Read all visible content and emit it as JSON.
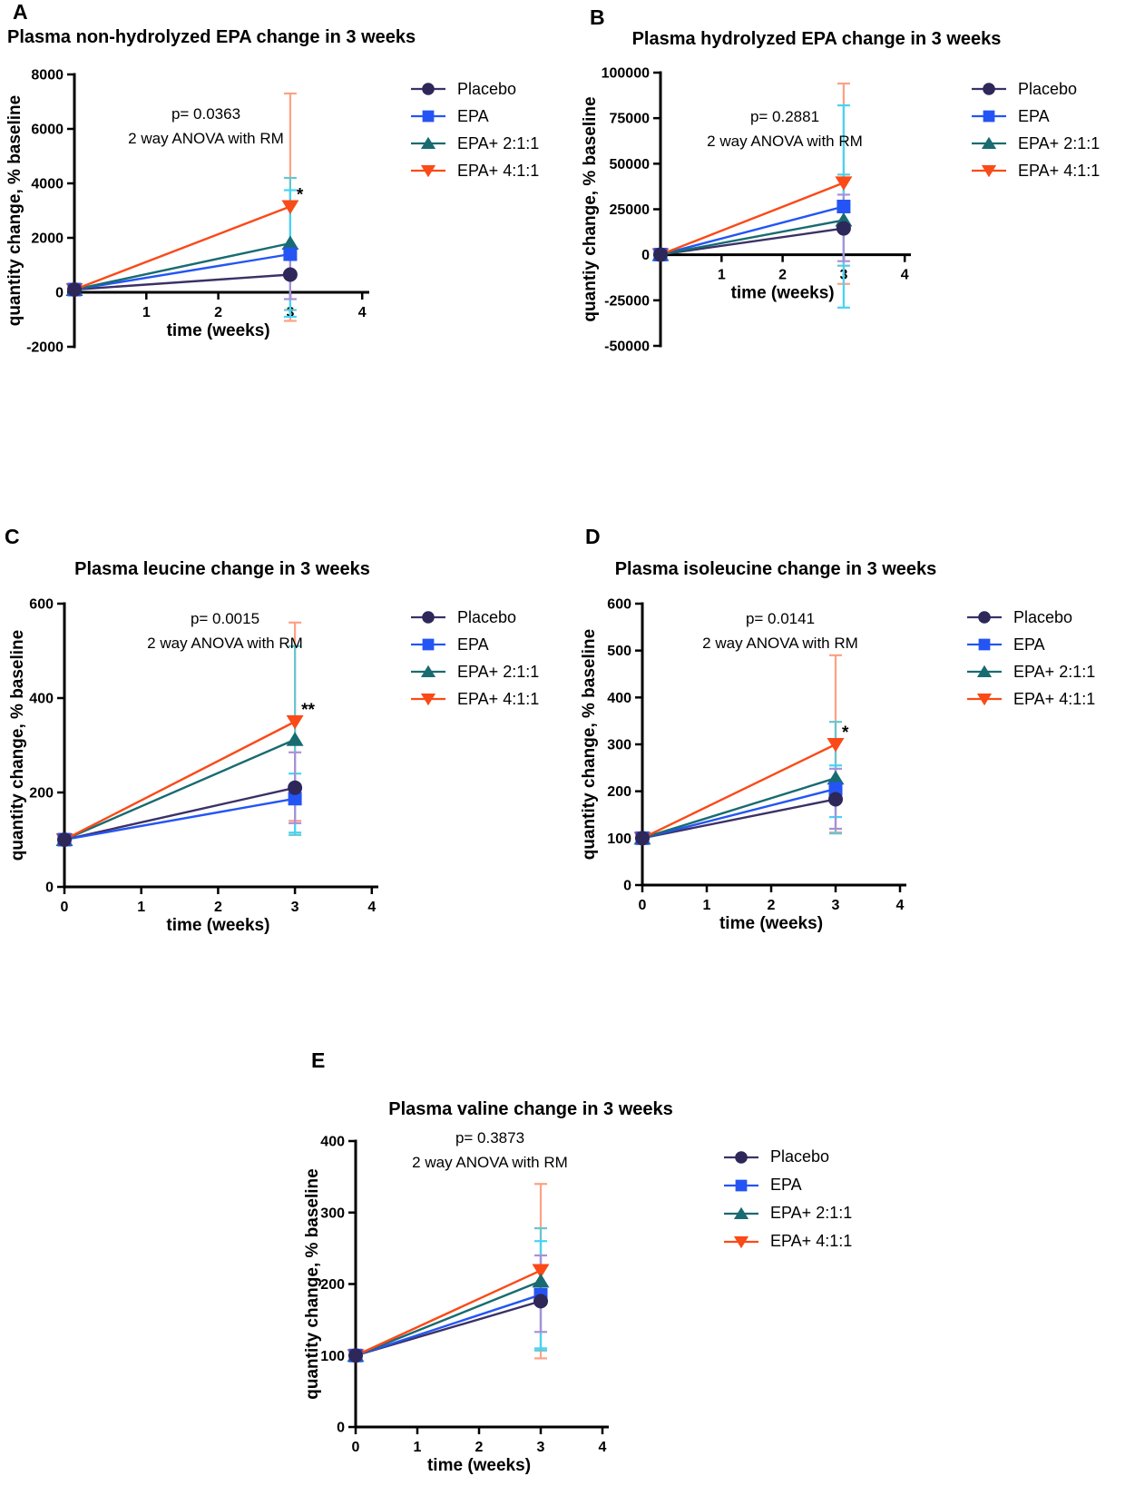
{
  "figure": {
    "background_color": "#ffffff",
    "text_color": "#000000",
    "legend_labels": [
      "Placebo",
      "EPA",
      "EPA+ 2:1:1",
      "EPA+ 4:1:1"
    ],
    "series_styles": [
      {
        "key": "placebo",
        "label": "Placebo",
        "marker": "circle",
        "color": "#2d275a",
        "line_color": "#3c3166",
        "error_color": "#a990d8"
      },
      {
        "key": "epa",
        "label": "EPA",
        "marker": "square",
        "color": "#2455f4",
        "line_color": "#2455f4",
        "error_color": "#44d4f6"
      },
      {
        "key": "epa211",
        "label": "EPA+ 2:1:1",
        "marker": "triangle-up",
        "color": "#186b71",
        "line_color": "#186b71",
        "error_color": "#66c6cf"
      },
      {
        "key": "epa411",
        "label": "EPA+ 4:1:1",
        "marker": "triangle-down",
        "color": "#fa4a17",
        "line_color": "#fa4a17",
        "error_color": "#fba285"
      }
    ]
  },
  "chart_data": [
    {
      "type": "line",
      "panel": "A",
      "panel_letter": "A",
      "title": "Plasma non-hydrolyzed EPA change in 3 weeks",
      "annotation": {
        "p_value_line": "p= 0.0363",
        "method_line": "2 way ANOVA with RM"
      },
      "xlabel": "time (weeks)",
      "ylabel": "quantity change, % baseline",
      "x_weeks": [
        0,
        3
      ],
      "xticks": [
        1,
        2,
        3,
        4
      ],
      "ylim": [
        -2000,
        8000
      ],
      "yticks": [
        -2000,
        0,
        2000,
        4000,
        6000,
        8000
      ],
      "legend_position": "right",
      "grid": false,
      "series": [
        {
          "name": "Placebo",
          "values": [
            100,
            650
          ],
          "error_week3": [
            -250,
            1550
          ],
          "significance": ""
        },
        {
          "name": "EPA",
          "values": [
            100,
            1400
          ],
          "error_week3": [
            -900,
            3750
          ],
          "significance": ""
        },
        {
          "name": "EPA+ 2:1:1",
          "values": [
            100,
            1800
          ],
          "error_week3": [
            -650,
            4200
          ],
          "significance": ""
        },
        {
          "name": "EPA+ 4:1:1",
          "values": [
            100,
            3150
          ],
          "error_week3": [
            -1050,
            7300
          ],
          "significance": "*"
        }
      ]
    },
    {
      "type": "line",
      "panel": "B",
      "panel_letter": "B",
      "title": "Plasma hydrolyzed EPA change in 3 weeks",
      "annotation": {
        "p_value_line": "p= 0.2881",
        "method_line": "2 way ANOVA with RM"
      },
      "xlabel": "time (weeks)",
      "ylabel": "quantiy change, % baseline",
      "x_weeks": [
        0,
        3
      ],
      "xticks": [
        1,
        2,
        3,
        4
      ],
      "ylim": [
        -50000,
        100000
      ],
      "yticks": [
        -50000,
        -25000,
        0,
        25000,
        50000,
        75000,
        100000
      ],
      "legend_position": "right",
      "grid": false,
      "series": [
        {
          "name": "Placebo",
          "values": [
            100,
            14500
          ],
          "error_week3": [
            -3500,
            33000
          ],
          "significance": ""
        },
        {
          "name": "EPA",
          "values": [
            100,
            26500
          ],
          "error_week3": [
            -29000,
            82000
          ],
          "significance": ""
        },
        {
          "name": "EPA+ 2:1:1",
          "values": [
            100,
            19000
          ],
          "error_week3": [
            -6000,
            44000
          ],
          "significance": ""
        },
        {
          "name": "EPA+ 4:1:1",
          "values": [
            100,
            39500
          ],
          "error_week3": [
            -16000,
            94000
          ],
          "significance": ""
        }
      ]
    },
    {
      "type": "line",
      "panel": "C",
      "panel_letter": "C",
      "title": "Plasma leucine change in 3 weeks",
      "annotation": {
        "p_value_line": "p= 0.0015",
        "method_line": "2 way ANOVA with RM"
      },
      "xlabel": "time (weeks)",
      "ylabel": "quantity change, % baseline",
      "x_weeks": [
        0,
        3
      ],
      "xticks": [
        0,
        1,
        2,
        3,
        4
      ],
      "ylim": [
        0,
        600
      ],
      "yticks": [
        0,
        200,
        400,
        600
      ],
      "legend_position": "right",
      "grid": false,
      "series": [
        {
          "name": "Placebo",
          "values": [
            100,
            210
          ],
          "error_week3": [
            135,
            285
          ],
          "significance": ""
        },
        {
          "name": "EPA",
          "values": [
            100,
            187
          ],
          "error_week3": [
            115,
            240
          ],
          "significance": ""
        },
        {
          "name": "EPA+ 2:1:1",
          "values": [
            100,
            312
          ],
          "error_week3": [
            110,
            510
          ],
          "significance": ""
        },
        {
          "name": "EPA+ 4:1:1",
          "values": [
            100,
            350
          ],
          "error_week3": [
            140,
            560
          ],
          "significance": "**"
        }
      ]
    },
    {
      "type": "line",
      "panel": "D",
      "panel_letter": "D",
      "title": "Plasma isoleucine change in 3 weeks",
      "annotation": {
        "p_value_line": "p= 0.0141",
        "method_line": "2 way ANOVA with RM"
      },
      "xlabel": "time (weeks)",
      "ylabel": "quantity change, % baseline",
      "x_weeks": [
        0,
        3
      ],
      "xticks": [
        0,
        1,
        2,
        3,
        4
      ],
      "ylim": [
        0,
        600
      ],
      "yticks": [
        0,
        100,
        200,
        300,
        400,
        500,
        600
      ],
      "legend_position": "right",
      "grid": false,
      "series": [
        {
          "name": "Placebo",
          "values": [
            100,
            183
          ],
          "error_week3": [
            120,
            248
          ],
          "significance": ""
        },
        {
          "name": "EPA",
          "values": [
            100,
            205
          ],
          "error_week3": [
            145,
            255
          ],
          "significance": ""
        },
        {
          "name": "EPA+ 2:1:1",
          "values": [
            100,
            228
          ],
          "error_week3": [
            110,
            348
          ],
          "significance": ""
        },
        {
          "name": "EPA+ 4:1:1",
          "values": [
            100,
            300
          ],
          "error_week3": [
            112,
            490
          ],
          "significance": "*"
        }
      ]
    },
    {
      "type": "line",
      "panel": "E",
      "panel_letter": "E",
      "title": "Plasma valine change in 3 weeks",
      "annotation": {
        "p_value_line": "p= 0.3873",
        "method_line": "2 way ANOVA with RM"
      },
      "xlabel": "time (weeks)",
      "ylabel": "quantity change, % baseline",
      "x_weeks": [
        0,
        3
      ],
      "xticks": [
        0,
        1,
        2,
        3,
        4
      ],
      "ylim": [
        0,
        400
      ],
      "yticks": [
        0,
        100,
        200,
        300,
        400
      ],
      "legend_position": "right",
      "grid": false,
      "series": [
        {
          "name": "Placebo",
          "values": [
            100,
            176
          ],
          "error_week3": [
            133,
            240
          ],
          "significance": ""
        },
        {
          "name": "EPA",
          "values": [
            100,
            185
          ],
          "error_week3": [
            110,
            260
          ],
          "significance": ""
        },
        {
          "name": "EPA+ 2:1:1",
          "values": [
            100,
            204
          ],
          "error_week3": [
            107,
            278
          ],
          "significance": ""
        },
        {
          "name": "EPA+ 4:1:1",
          "values": [
            100,
            219
          ],
          "error_week3": [
            96,
            340
          ],
          "significance": ""
        }
      ]
    }
  ]
}
